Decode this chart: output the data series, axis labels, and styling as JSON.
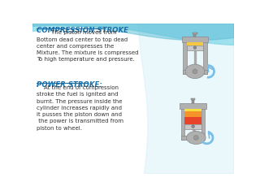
{
  "title1": "COMPRESSION STROKE",
  "text1_lines": [
    "        The piston moves from",
    "Bottom dead center to top dead",
    "center and compresses the",
    "Mixture. The mixture is compressed",
    "To high temperature and pressure."
  ],
  "title2": "POWER STROKE:",
  "text2_lines": [
    "    At the end of compression",
    "stroke the fuel is ignited and",
    "burnt. The pressure inside the",
    "cylinder increases rapidly and",
    "it pusses the piston down and",
    " the power is transmitted from",
    "piston to wheel."
  ],
  "title_color": "#1a6fa8",
  "text_color": "#333333",
  "header_color1": "#5bbcd6",
  "header_color2": "#7ed6e8",
  "wall_color": "#b0b0b0",
  "piston_color": "#c8c8c8",
  "arrow_color": "#7abfe8",
  "yellow_fill": "#f5c842",
  "fire_red": "#e8442a",
  "fire_orange": "#f5922a",
  "fire_yellow": "#f5e040"
}
